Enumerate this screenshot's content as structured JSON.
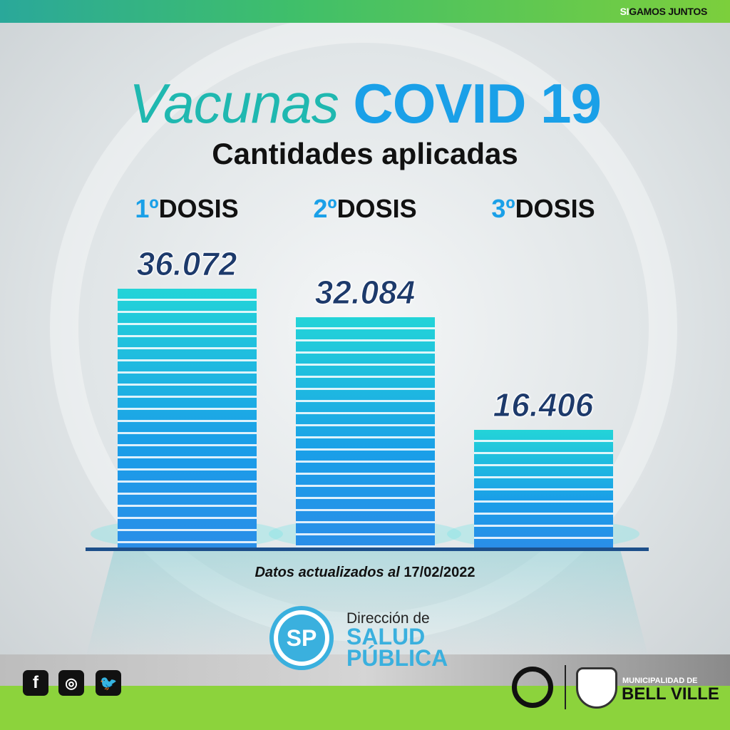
{
  "header": {
    "slogan_si": "SI",
    "slogan_rest": "GAMOS JUNTOS"
  },
  "title": {
    "part1": "Vacunas",
    "part2": "COVID 19",
    "subtitle": "Cantidades aplicadas"
  },
  "chart_data": {
    "type": "bar",
    "categories": [
      {
        "num": "1º",
        "label": "DOSIS"
      },
      {
        "num": "2º",
        "label": "DOSIS"
      },
      {
        "num": "3º",
        "label": "DOSIS"
      }
    ],
    "values": [
      36072,
      32084,
      16406
    ],
    "value_labels": [
      "36.072",
      "32.084",
      "16.406"
    ],
    "colors": {
      "bar_top": "#23d4d8",
      "bar_bottom": "#1a9ee8",
      "value_text": "#1d3a6b"
    }
  },
  "footer": {
    "updated_prefix": "Datos actualizados al",
    "updated_date": "17/02/2022",
    "sp_logo": "SP",
    "direccion": "Dirección de",
    "salud": "SALUD",
    "publica": "PÚBLICA",
    "social": [
      "facebook-icon",
      "instagram-icon",
      "twitter-icon"
    ],
    "muni": "MUNICIPALIDAD DE",
    "city": "BELL VILLE"
  }
}
